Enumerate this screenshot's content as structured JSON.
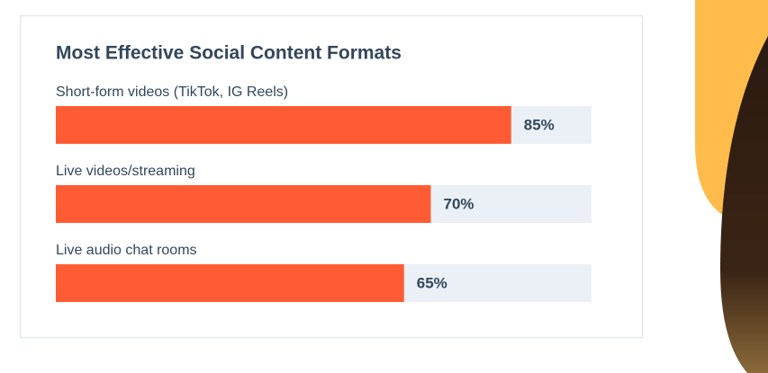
{
  "chart_data": {
    "type": "bar",
    "orientation": "horizontal",
    "title": "Most Effective Social Content Formats",
    "categories": [
      "Short-form videos (TikTok, IG Reels)",
      "Live videos/streaming",
      "Live audio chat rooms"
    ],
    "values": [
      85,
      70,
      65
    ],
    "value_labels": [
      "85%",
      "70%",
      "65%"
    ],
    "color": "#ff5c35",
    "track_color": "#eaf0f6",
    "xlim": [
      0,
      100
    ]
  }
}
